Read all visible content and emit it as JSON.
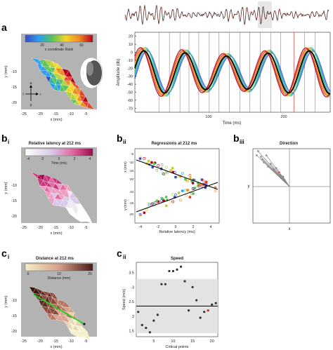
{
  "panel_letters": {
    "a": "a",
    "b_i": "b",
    "b_i_sub": "i",
    "b_ii": "b",
    "b_ii_sub": "ii",
    "b_iii": "b",
    "b_iii_sub": "iii",
    "c_i": "c",
    "c_i_sub": "i",
    "c_ii": "c",
    "c_ii_sub": "ii"
  },
  "panel_a_map": {
    "colorbar_ticks": [
      "20",
      "40",
      "60"
    ],
    "colorbar_label": "x coordinate Rank",
    "ylabel": "y (mm)",
    "xlabel": "x (mm)",
    "x_ticks": [
      "-25",
      "-20",
      "-15",
      "-10",
      "-5"
    ],
    "y_ticks": [
      "-10",
      "-15",
      "-20"
    ],
    "compass": {
      "a": "a",
      "p": "p",
      "l": "l",
      "r": "r"
    }
  },
  "panel_a_chart": {
    "chart_data": {
      "type": "line",
      "xlabel": "Time (ms)",
      "ylabel": "Amplitude (db)",
      "x_ticks": [
        "100",
        "200"
      ],
      "y_ticks": [
        "20",
        "10",
        "0",
        "-10",
        "-20",
        "-30",
        "-40",
        "-50",
        "-60",
        "-70"
      ],
      "xlim": [
        0,
        260
      ],
      "ylim": [
        -75,
        25
      ],
      "period_ms": 55,
      "series_colors": [
        "#3b4cc0",
        "#2a9df4",
        "#2fb5a8",
        "#58c45a",
        "#b4d13a",
        "#f2c02b",
        "#f08a24",
        "#e0452a",
        "#b3001b"
      ],
      "mean_color": "#000000",
      "vertical_markers": [
        32,
        46,
        60,
        72,
        85,
        99,
        112,
        126,
        140,
        153,
        167,
        181,
        194,
        212,
        226,
        240
      ],
      "highlight_marker": 212
    }
  },
  "panel_bi": {
    "title": "Relative latency at 212 ms",
    "colorbar_ticks": [
      "-4",
      "-2",
      "0",
      "2",
      "4"
    ],
    "colorbar_label": "Time (ms)",
    "ylabel": "y (mm)",
    "xlabel": "x (mm)",
    "x_ticks": [
      "-25",
      "-20",
      "-15",
      "-10",
      "-5"
    ],
    "y_ticks": [
      "-10",
      "-15",
      "-20"
    ]
  },
  "panel_bii": {
    "title": "Regressions at 212 ms",
    "ylabel_top": "x (mm)",
    "ylabel_bottom": "y (mm)",
    "xlabel": "Relative latency (ms)",
    "x_ticks": [
      "-4",
      "-2",
      "0",
      "2",
      "4"
    ],
    "y_ticks_top": [
      "-5",
      "-10",
      "-15",
      "-20"
    ],
    "y_ticks_bottom": [
      "-10",
      "-15",
      "-20"
    ]
  },
  "panel_biii": {
    "title": "Direction",
    "xlabel": "x",
    "ylabel": "y"
  },
  "panel_ci": {
    "title": "Distance at 212 ms",
    "colorbar_ticks": [
      "0",
      "10",
      "20"
    ],
    "colorbar_label": "Distance (mm)",
    "ylabel": "y (mm)",
    "xlabel": "x (mm)",
    "x_ticks": [
      "-25",
      "-20",
      "-15",
      "-10",
      "-5"
    ],
    "y_ticks": [
      "-10",
      "-15",
      "-20"
    ]
  },
  "panel_cii": {
    "chart_data": {
      "type": "scatter",
      "title": "Speed",
      "xlabel": "Critical points",
      "ylabel": "Speed (m/s)",
      "x_ticks": [
        "5",
        "10",
        "15",
        "20"
      ],
      "y_ticks": [
        "3.5",
        "3",
        "2.5",
        "2",
        "1.5"
      ],
      "xlim": [
        0.5,
        21.5
      ],
      "ylim": [
        1.3,
        3.85
      ],
      "mean": 2.35,
      "band": [
        1.42,
        3.28
      ],
      "x": [
        1,
        2,
        3,
        4,
        5,
        6,
        7,
        8,
        9,
        10,
        11,
        12,
        13,
        14,
        15,
        16,
        17,
        18,
        19,
        20,
        21
      ],
      "y": [
        2.15,
        1.7,
        1.6,
        1.45,
        1.85,
        2.05,
        3.1,
        3.1,
        3.55,
        3.55,
        3.6,
        3.7,
        3.2,
        2.2,
        3.0,
        2.55,
        1.95,
        2.15,
        2.2,
        2.4,
        2.45
      ],
      "highlight_index": 18,
      "highlight_color": "#e02020"
    }
  }
}
